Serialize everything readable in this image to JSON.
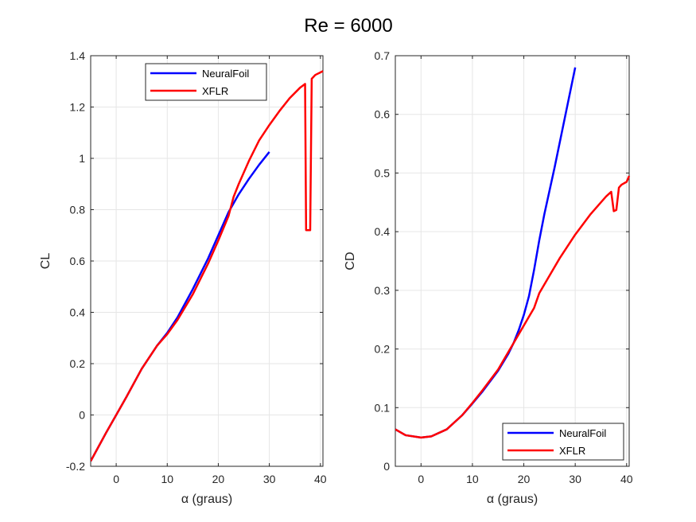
{
  "title": "Re = 6000",
  "colors": {
    "neuralfoil": "#0000ff",
    "xflr": "#ff0000",
    "grid": "#e6e6e6",
    "axis": "#262626"
  },
  "chart_data": [
    {
      "type": "line",
      "xlabel": "α (graus)",
      "ylabel": "CL",
      "xlim": [
        -5,
        40.5
      ],
      "ylim": [
        -0.2,
        1.4
      ],
      "xticks": [
        0,
        10,
        20,
        30,
        40
      ],
      "yticks": [
        -0.2,
        0,
        0.2,
        0.4,
        0.6,
        0.8,
        1,
        1.2,
        1.4
      ],
      "ytick_labels": [
        "-0.2",
        "0",
        "0.2",
        "0.4",
        "0.6",
        "0.8",
        "1",
        "1.2",
        "1.4"
      ],
      "grid": true,
      "legend_position": "top-right",
      "series": [
        {
          "name": "NeuralFoil",
          "color": "#0000ff",
          "x": [
            -5,
            -2,
            0,
            2,
            5,
            8,
            10,
            12,
            15,
            18,
            20,
            22,
            24,
            26,
            28,
            30
          ],
          "y": [
            -0.18,
            -0.07,
            0.0,
            0.07,
            0.18,
            0.27,
            0.32,
            0.38,
            0.49,
            0.61,
            0.7,
            0.79,
            0.86,
            0.92,
            0.975,
            1.025
          ]
        },
        {
          "name": "XFLR",
          "color": "#ff0000",
          "x": [
            -5,
            -2,
            0,
            2,
            5,
            8,
            10,
            12,
            15,
            18,
            20,
            22,
            23,
            24,
            26,
            28,
            30,
            32,
            34,
            36,
            37,
            37.2,
            37.5,
            38,
            38.3,
            39,
            40,
            40.5
          ],
          "y": [
            -0.18,
            -0.07,
            0.0,
            0.07,
            0.18,
            0.27,
            0.315,
            0.37,
            0.47,
            0.59,
            0.68,
            0.775,
            0.85,
            0.9,
            0.99,
            1.07,
            1.13,
            1.185,
            1.235,
            1.275,
            1.29,
            0.72,
            0.72,
            0.72,
            1.31,
            1.325,
            1.335,
            1.34
          ]
        }
      ]
    },
    {
      "type": "line",
      "xlabel": "α (graus)",
      "ylabel": "CD",
      "xlim": [
        -5,
        40.5
      ],
      "ylim": [
        0,
        0.7
      ],
      "xticks": [
        0,
        10,
        20,
        30,
        40
      ],
      "yticks": [
        0,
        0.1,
        0.2,
        0.3,
        0.4,
        0.5,
        0.6,
        0.7
      ],
      "ytick_labels": [
        "0",
        "0.1",
        "0.2",
        "0.3",
        "0.4",
        "0.5",
        "0.6",
        "0.7"
      ],
      "grid": true,
      "legend_position": "bottom-right",
      "series": [
        {
          "name": "NeuralFoil",
          "color": "#0000ff",
          "x": [
            -5,
            -3,
            0,
            2,
            5,
            8,
            10,
            12,
            15,
            17,
            18,
            19,
            20,
            21,
            22,
            23,
            24,
            26,
            28,
            30
          ],
          "y": [
            0.063,
            0.053,
            0.049,
            0.051,
            0.063,
            0.087,
            0.107,
            0.128,
            0.163,
            0.192,
            0.21,
            0.232,
            0.258,
            0.29,
            0.335,
            0.385,
            0.43,
            0.51,
            0.595,
            0.68
          ]
        },
        {
          "name": "XFLR",
          "color": "#ff0000",
          "x": [
            -5,
            -3,
            0,
            2,
            5,
            8,
            10,
            12,
            15,
            17,
            18,
            20,
            21,
            22,
            23,
            25,
            27,
            30,
            33,
            35,
            36,
            37,
            37.5,
            38,
            38.5,
            39,
            40,
            40.5
          ],
          "y": [
            0.063,
            0.053,
            0.049,
            0.051,
            0.063,
            0.087,
            0.108,
            0.13,
            0.165,
            0.195,
            0.21,
            0.24,
            0.255,
            0.27,
            0.295,
            0.325,
            0.355,
            0.395,
            0.43,
            0.45,
            0.46,
            0.468,
            0.435,
            0.437,
            0.475,
            0.48,
            0.485,
            0.495
          ]
        }
      ]
    }
  ]
}
